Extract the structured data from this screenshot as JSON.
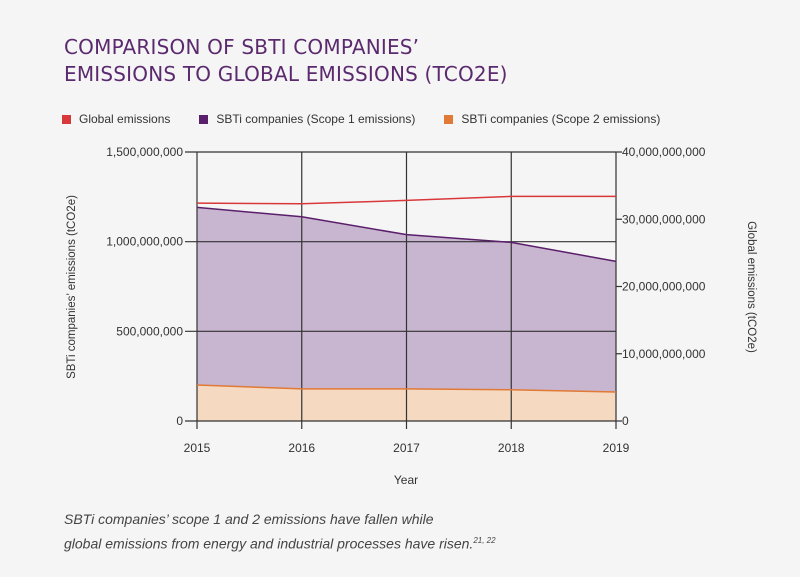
{
  "title": {
    "line1": "COMPARISON OF SBTI COMPANIES’",
    "line2": "EMISSIONS TO GLOBAL EMISSIONS (TCO2E)"
  },
  "caption": {
    "line1": "SBTi companies’ scope 1 and 2 emissions have fallen while",
    "line2": "global emissions from energy and industrial processes have risen.",
    "refs": "21, 22"
  },
  "colors": {
    "global": "#d9383a",
    "scope1_line": "#5a1f6b",
    "scope1_fill": "#c8b5cf",
    "scope2_line": "#e07a36",
    "scope2_fill": "#f5d9c0",
    "grid": "#333333",
    "title": "#5b2a6e"
  },
  "chart_data": {
    "type": "area",
    "title": "COMPARISON OF SBTI COMPANIES’ EMISSIONS TO GLOBAL EMISSIONS (TCO2E)",
    "xlabel": "Year",
    "ylabel": "SBTi companies’ emissions (tCO2e)",
    "y2label": "Global emissions (tCO2e)",
    "x": [
      "2015",
      "2016",
      "2017",
      "2018",
      "2019"
    ],
    "ylim": [
      0,
      1500000000
    ],
    "y2lim": [
      0,
      40000000000
    ],
    "yticks": [
      0,
      500000000,
      1000000000,
      1500000000
    ],
    "ytick_labels": [
      "0",
      "500,000,000",
      "1,000,000,000",
      "1,500,000,000"
    ],
    "y2ticks": [
      0,
      10000000000,
      20000000000,
      30000000000,
      40000000000
    ],
    "y2tick_labels": [
      "0",
      "10,000,000,000",
      "20,000,000,000",
      "30,000,000,000",
      "40,000,000,000"
    ],
    "grid": true,
    "legend_position": "top",
    "stacked": true,
    "series": [
      {
        "name": "Global emissions",
        "axis": "right",
        "kind": "line",
        "values": [
          32400000000,
          32300000000,
          32800000000,
          33400000000,
          33400000000
        ]
      },
      {
        "name": "SBTi companies (Scope 1 emissions)",
        "axis": "left",
        "kind": "stacked-area",
        "values": [
          990000000,
          960000000,
          860000000,
          822000000,
          728000000
        ]
      },
      {
        "name": "SBTi companies (Scope 2 emissions)",
        "axis": "left",
        "kind": "stacked-area",
        "values": [
          201000000,
          179000000,
          179000000,
          174000000,
          162000000
        ]
      }
    ]
  }
}
